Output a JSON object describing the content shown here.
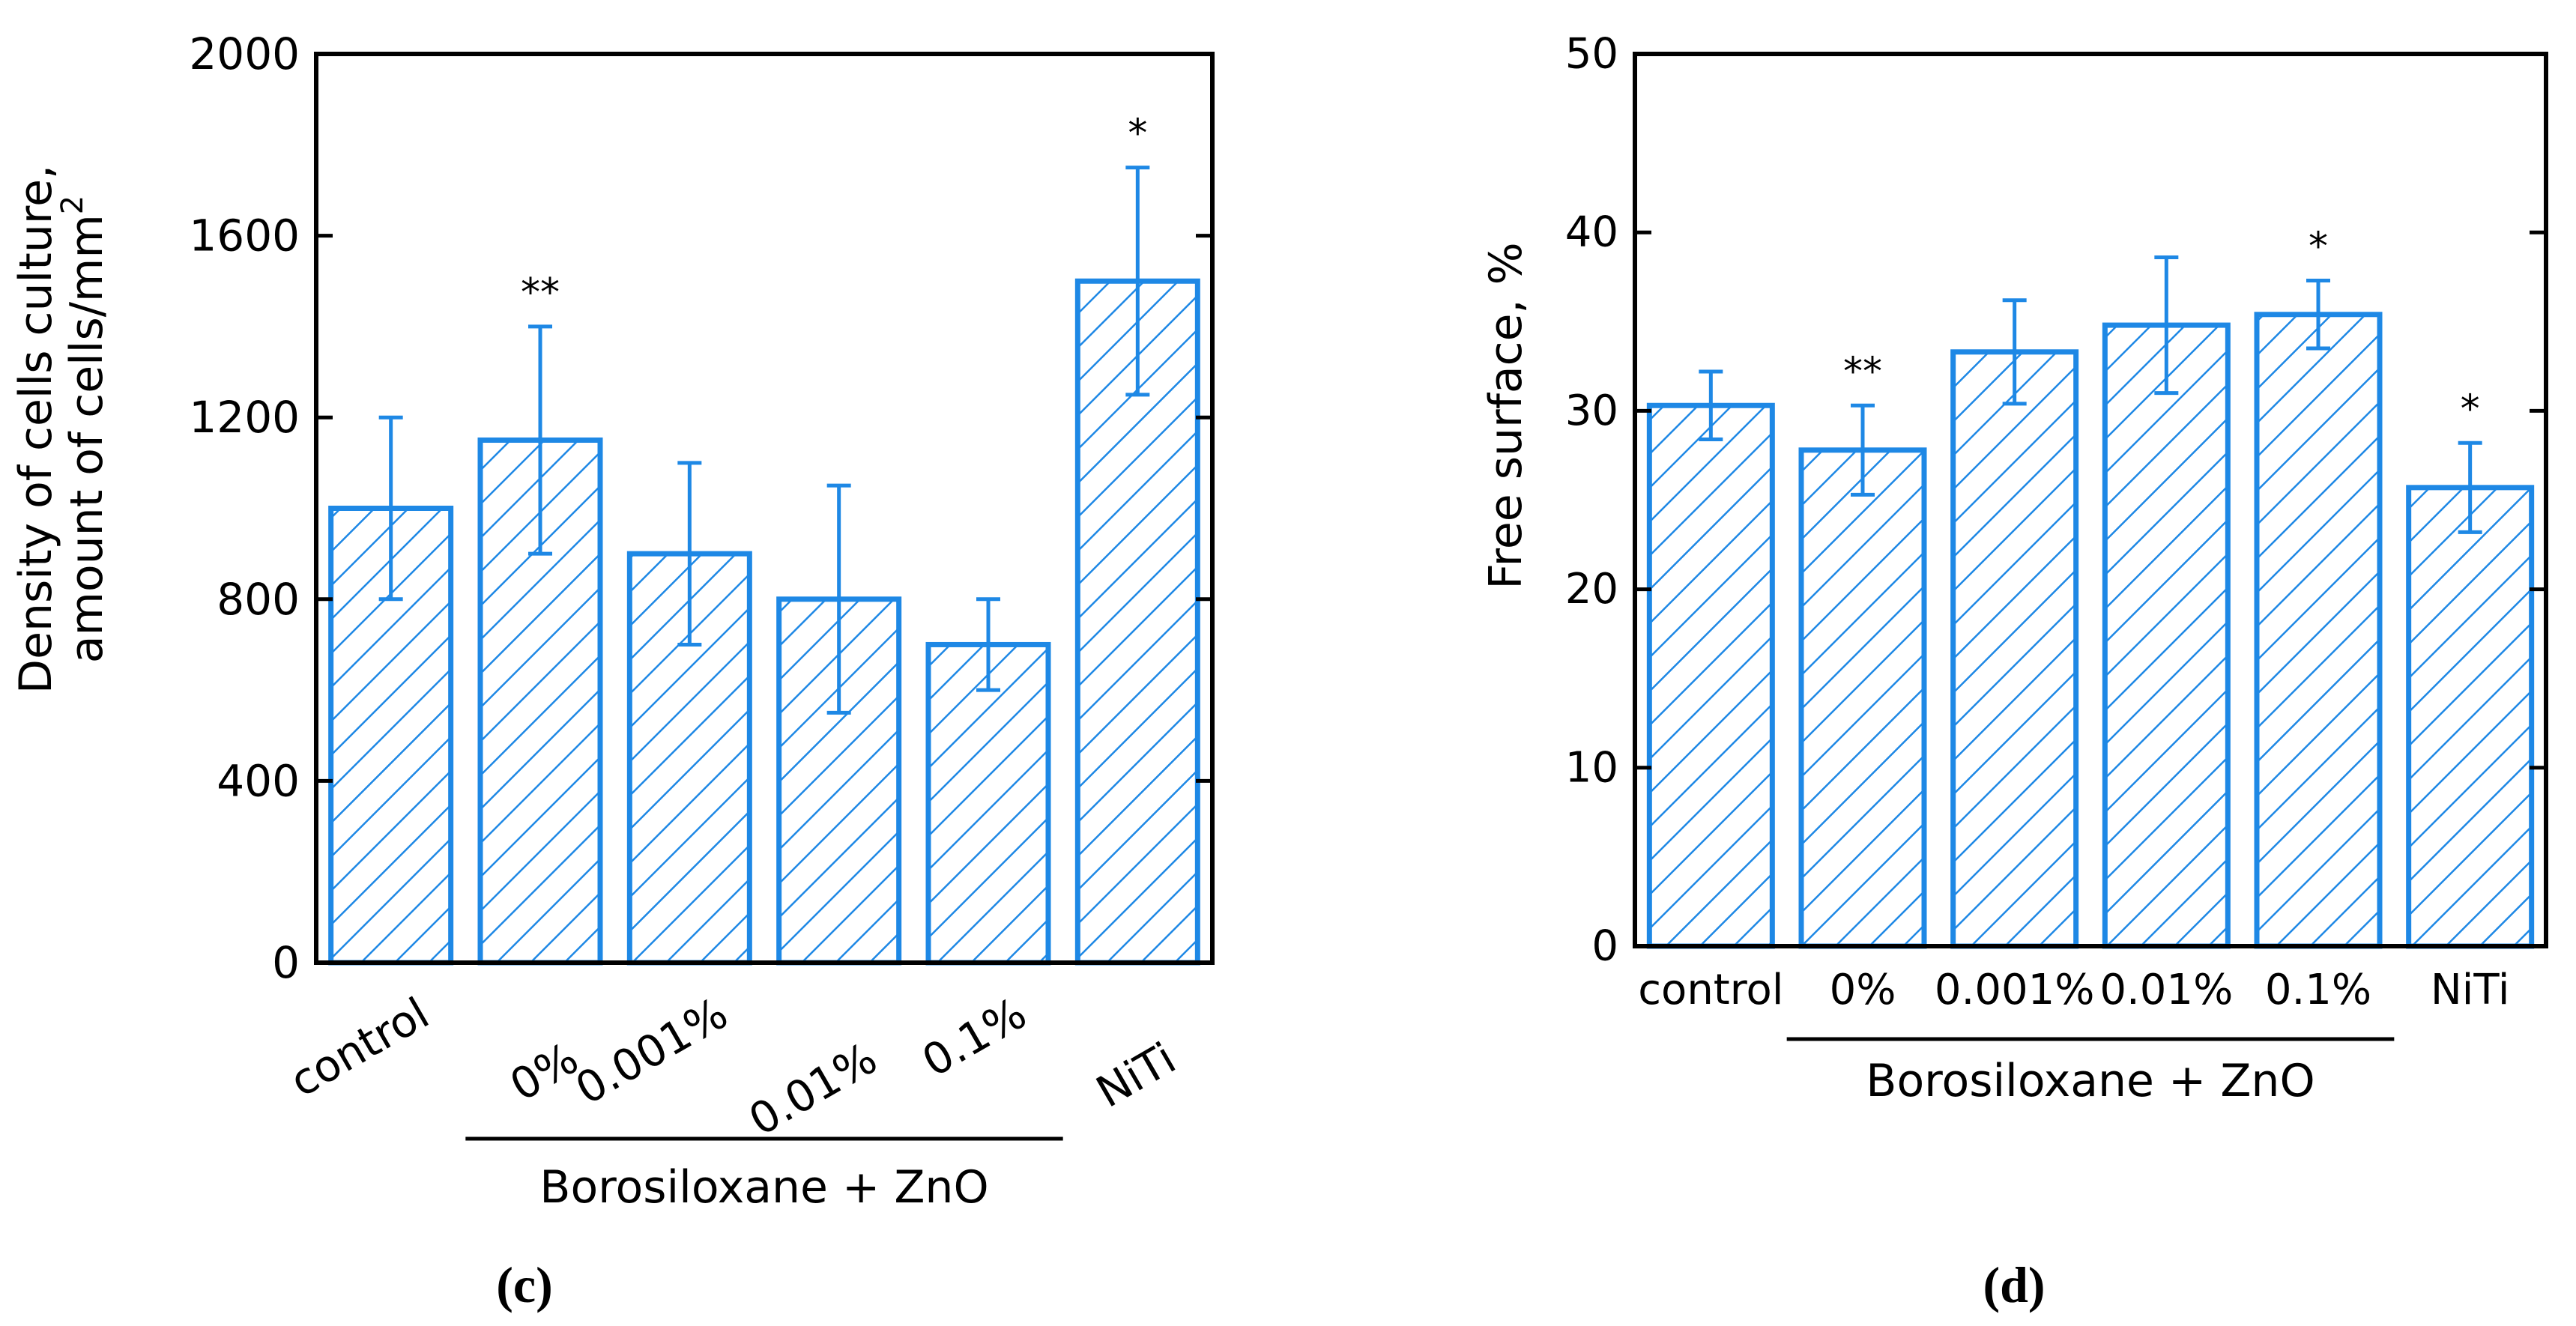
{
  "colors": {
    "bar": "#1e88e5",
    "axis": "#000000",
    "text": "#000000"
  },
  "chart_data": [
    {
      "type": "bar",
      "panel_label": "(c)",
      "categories": [
        "control",
        "0%",
        "0.001%",
        "0.01%",
        "0.1%",
        "NiTi"
      ],
      "values": [
        1000,
        1150,
        900,
        800,
        700,
        1500
      ],
      "error_upper": [
        1200,
        1400,
        1100,
        1050,
        800,
        1750
      ],
      "error_lower": [
        800,
        900,
        700,
        550,
        600,
        1250
      ],
      "annotations": [
        "",
        "**",
        "",
        "",
        "",
        "*"
      ],
      "ylabel_line1": "Density of cells culture,",
      "ylabel_line2": "amount of cells/mm",
      "ylabel_superscript": "2",
      "yticks": [
        0,
        400,
        800,
        1200,
        1600,
        2000
      ],
      "ylim": [
        0,
        2000
      ],
      "tick_labels_rotated": true,
      "group_label": "Borosiloxane + ZnO",
      "group_range": [
        "0%",
        "0.1%"
      ],
      "pattern": "diagonal-hatch",
      "grid": false
    },
    {
      "type": "bar",
      "panel_label": "(d)",
      "categories": [
        "control",
        "0%",
        "0.001%",
        "0.01%",
        "0.1%",
        "NiTi"
      ],
      "values": [
        30.3,
        27.8,
        33.3,
        34.8,
        35.4,
        25.7
      ],
      "error_upper": [
        32.2,
        30.3,
        36.2,
        38.6,
        37.3,
        28.2
      ],
      "error_lower": [
        28.4,
        25.3,
        30.4,
        31.0,
        33.5,
        23.2
      ],
      "annotations": [
        "",
        "**",
        "",
        "",
        "*",
        "*"
      ],
      "ylabel_line1": "Free surface, %",
      "yticks": [
        0,
        10,
        20,
        30,
        40,
        50
      ],
      "ylim": [
        0,
        50
      ],
      "tick_labels_rotated": false,
      "group_label": "Borosiloxane + ZnO",
      "group_range": [
        "0%",
        "0.1%"
      ],
      "pattern": "diagonal-hatch",
      "grid": false
    }
  ]
}
